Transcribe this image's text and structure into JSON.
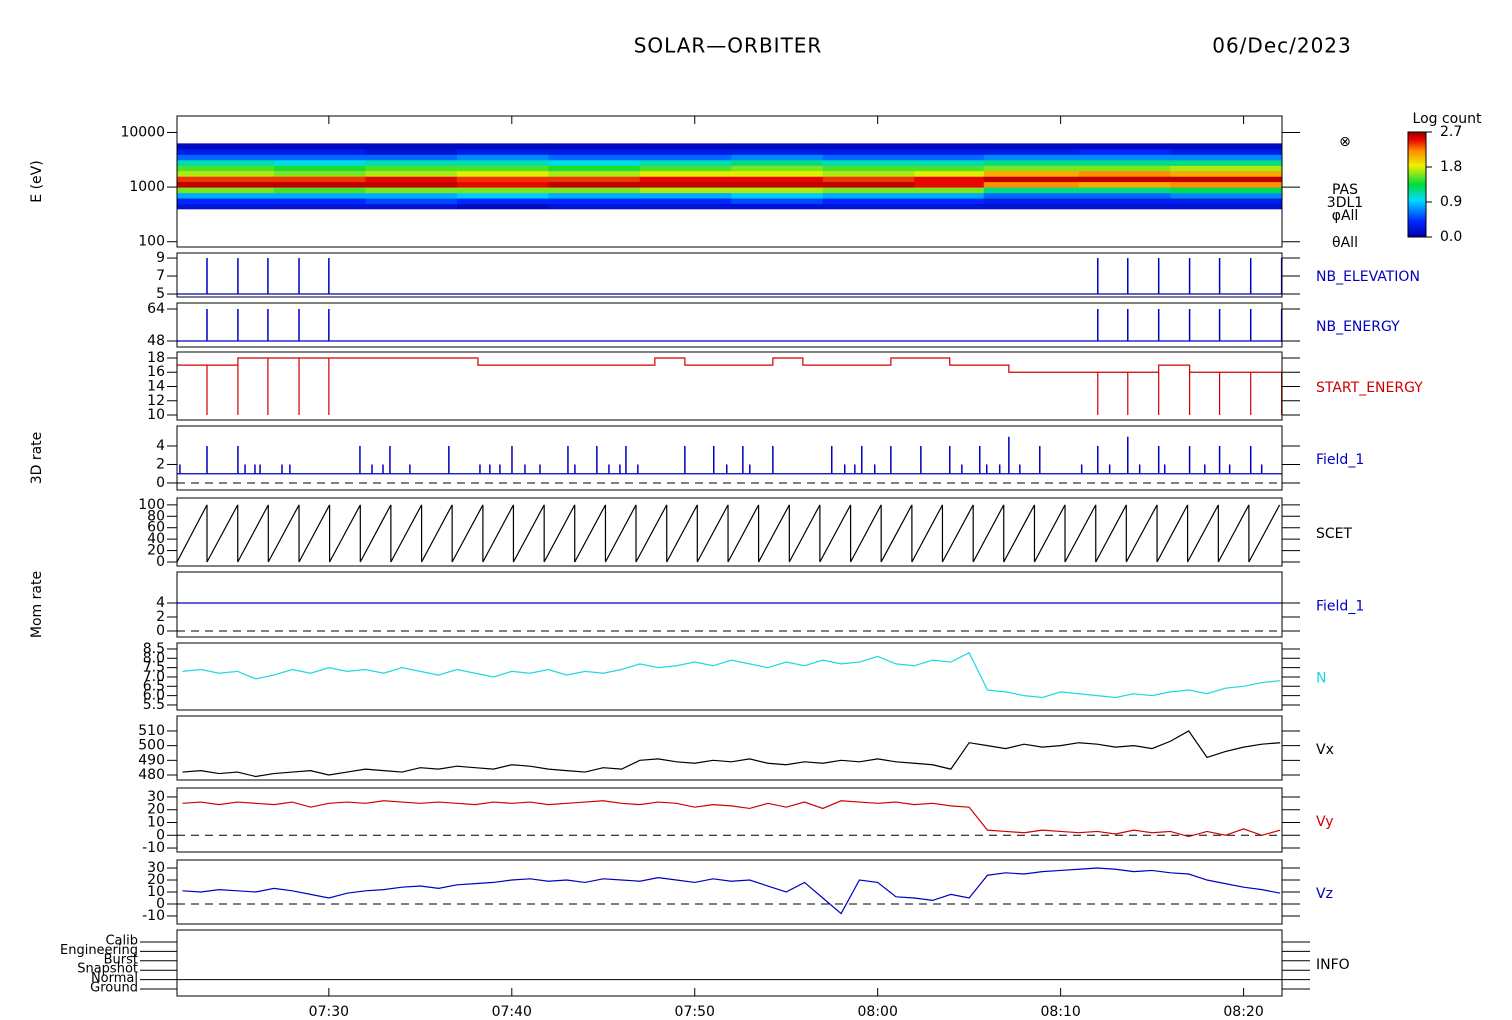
{
  "chart_data": [
    {
      "type": "spectrogram",
      "title": "SOLAR—ORBITER",
      "date": "06/Dec/2023",
      "ylabel": "E (eV)",
      "log_y": true,
      "ylim": [
        80,
        20000
      ],
      "yticks": [
        100,
        1000,
        10000
      ],
      "xlim": [
        21.7,
        82.1
      ],
      "time_edges": [
        21.7,
        27,
        32,
        37,
        42,
        47,
        52,
        57,
        62,
        65.8,
        71,
        76,
        82.1
      ],
      "energy_edges": [
        400,
        500,
        630,
        790,
        1000,
        1260,
        1580,
        2000,
        2510,
        3160,
        3980,
        5010,
        6310
      ],
      "z": [
        [
          0.2,
          0.4,
          0.8,
          1.6,
          2.6,
          2.4,
          1.7,
          1.5,
          1.1,
          0.6,
          0.3,
          0.1
        ],
        [
          0.2,
          0.4,
          0.8,
          1.5,
          2.6,
          2.4,
          1.6,
          1.4,
          1.0,
          0.6,
          0.3,
          0.1
        ],
        [
          0.2,
          0.5,
          0.8,
          1.6,
          2.6,
          2.5,
          1.7,
          1.5,
          1.1,
          0.6,
          0.2,
          0.1
        ],
        [
          0.1,
          0.4,
          0.9,
          1.6,
          2.5,
          2.4,
          1.8,
          1.5,
          1.1,
          0.7,
          0.3,
          0.1
        ],
        [
          0.2,
          0.4,
          0.8,
          1.6,
          2.6,
          2.4,
          1.7,
          1.4,
          1.0,
          0.6,
          0.3,
          0.1
        ],
        [
          0.2,
          0.4,
          0.8,
          1.7,
          2.6,
          2.5,
          1.8,
          1.5,
          1.1,
          0.6,
          0.3,
          0.1
        ],
        [
          0.2,
          0.5,
          0.9,
          1.7,
          2.6,
          2.5,
          1.8,
          1.6,
          1.2,
          0.7,
          0.3,
          0.1
        ],
        [
          0.2,
          0.4,
          0.8,
          1.6,
          2.6,
          2.4,
          1.7,
          1.5,
          1.1,
          0.6,
          0.3,
          0.1
        ],
        [
          0.2,
          0.4,
          0.8,
          1.6,
          2.5,
          2.5,
          1.8,
          1.5,
          1.1,
          0.6,
          0.3,
          0.1
        ],
        [
          0.2,
          0.3,
          0.6,
          1.2,
          2.2,
          2.6,
          2.1,
          1.6,
          1.2,
          0.7,
          0.3,
          0.1
        ],
        [
          0.2,
          0.3,
          0.6,
          1.2,
          2.1,
          2.6,
          2.2,
          1.6,
          1.2,
          0.7,
          0.4,
          0.1
        ],
        [
          0.2,
          0.3,
          0.7,
          1.3,
          2.2,
          2.6,
          2.1,
          1.7,
          1.2,
          0.7,
          0.3,
          0.1
        ]
      ],
      "annotations": [
        "⊗",
        "PAS",
        "3DL1",
        "φAll",
        "θAll"
      ],
      "colorbar": {
        "title": "Log count",
        "clim": [
          0,
          2.7
        ],
        "ticks": [
          2.7,
          1.8,
          0.9,
          {
            "value": 0,
            "label": "0.0"
          }
        ]
      }
    },
    {
      "type": "spikes",
      "label": "NB_ELEVATION",
      "color": "#0000c0",
      "ylim": [
        4.67,
        9.56
      ],
      "yticks": [
        5,
        7,
        9
      ],
      "xlim": [
        21.7,
        82.1
      ],
      "base_value": 5,
      "x": [
        23.34,
        25.03,
        26.67,
        28.37,
        30.0,
        72.03,
        73.67,
        75.36,
        77.05,
        78.69,
        80.39,
        82.08
      ],
      "values": [
        9,
        9,
        9,
        9,
        9,
        9,
        9,
        9,
        9,
        9,
        9,
        9
      ]
    },
    {
      "type": "spikes",
      "label": "NB_ENERGY",
      "color": "#0000c0",
      "ylim": [
        45,
        67
      ],
      "yticks": [
        48,
        64
      ],
      "xlim": [
        21.7,
        82.1
      ],
      "base_value": 48,
      "x": [
        23.34,
        25.03,
        26.67,
        28.37,
        30.0,
        72.03,
        73.67,
        75.36,
        77.05,
        78.69,
        80.39,
        82.08
      ],
      "values": [
        64,
        64,
        64,
        64,
        64,
        64,
        64,
        64,
        64,
        64,
        64,
        64
      ]
    },
    {
      "type": "line",
      "label": "START_ENERGY",
      "color": "#d00000",
      "ylim": [
        9.3,
        18.84
      ],
      "yticks": [
        10,
        12,
        14,
        16,
        18
      ],
      "xlim": [
        21.7,
        82.1
      ],
      "x": [
        21.7,
        23.34,
        23.34,
        23.34,
        25.03,
        25.03,
        25.03,
        26.67,
        26.67,
        26.67,
        28.37,
        28.37,
        28.37,
        30.0,
        30.0,
        30.0,
        38.15,
        38.15,
        47.82,
        47.82,
        49.46,
        49.46,
        54.27,
        54.27,
        55.91,
        55.91,
        60.72,
        60.72,
        63.94,
        63.94,
        67.17,
        67.17,
        72.03,
        72.03,
        72.03,
        73.67,
        73.67,
        73.67,
        75.36,
        75.36,
        75.36,
        77.05,
        77.05,
        77.05,
        78.69,
        78.69,
        78.69,
        80.39,
        80.39,
        80.39,
        82.08,
        82.08
      ],
      "values": [
        17,
        17,
        10,
        17,
        17,
        10,
        18,
        18,
        10,
        18,
        18,
        10,
        18,
        18,
        10,
        18,
        18,
        17,
        17,
        18,
        18,
        17,
        17,
        18,
        18,
        17,
        17,
        18,
        18,
        17,
        17,
        16,
        16,
        10,
        16,
        16,
        10,
        16,
        16,
        10,
        17,
        17,
        10,
        16,
        16,
        10,
        16,
        16,
        10,
        16,
        16,
        10
      ]
    },
    {
      "type": "spikes",
      "label": "Field_1",
      "ylabel": "3D rate",
      "color": "#0000c0",
      "ylim": [
        -0.76,
        6.16
      ],
      "yticks": [
        0,
        2,
        4
      ],
      "xlim": [
        21.7,
        82.1
      ],
      "reference_line": 0,
      "base_value": 1,
      "x": [
        21.86,
        23.34,
        25.03,
        25.42,
        25.96,
        26.24,
        27.44,
        27.87,
        31.7,
        32.36,
        32.96,
        33.34,
        34.43,
        36.56,
        38.26,
        38.8,
        39.35,
        40.01,
        40.72,
        41.54,
        43.07,
        43.45,
        44.65,
        45.31,
        45.91,
        46.24,
        46.89,
        49.46,
        51.04,
        51.75,
        52.63,
        53.01,
        54.27,
        57.49,
        58.2,
        58.75,
        59.13,
        59.84,
        60.72,
        62.36,
        63.94,
        64.6,
        65.58,
        65.96,
        66.67,
        67.17,
        67.77,
        68.86,
        71.15,
        72.03,
        72.68,
        73.67,
        74.32,
        75.36,
        75.69,
        77.05,
        77.88,
        78.69,
        79.24,
        80.39,
        80.99
      ],
      "values": [
        2,
        4,
        4,
        2,
        2,
        2,
        2,
        2,
        4,
        2,
        2,
        4,
        2,
        4,
        2,
        2,
        2,
        4,
        2,
        2,
        4,
        2,
        4,
        2,
        2,
        4,
        2,
        4,
        4,
        2,
        4,
        2,
        4,
        4,
        2,
        2,
        4,
        2,
        4,
        4,
        4,
        2,
        4,
        2,
        2,
        5,
        2,
        4,
        2,
        4,
        2,
        5,
        2,
        4,
        2,
        4,
        2,
        4,
        2,
        4,
        2
      ]
    },
    {
      "type": "line",
      "label": "SCET",
      "color": "#000000",
      "ylim": [
        -7,
        112
      ],
      "yticks": [
        0,
        20,
        40,
        60,
        80,
        100
      ],
      "xlim": [
        21.7,
        82.1
      ],
      "x": [
        21.7,
        23.34,
        23.34,
        25.02,
        25.02,
        26.69,
        26.69,
        28.37,
        28.37,
        30.04,
        30.04,
        31.72,
        31.72,
        33.39,
        33.39,
        35.07,
        35.07,
        36.74,
        36.74,
        38.42,
        38.42,
        40.09,
        40.09,
        41.77,
        41.77,
        43.44,
        43.44,
        45.12,
        45.12,
        46.79,
        46.79,
        48.47,
        48.47,
        50.14,
        50.14,
        51.82,
        51.82,
        53.49,
        53.49,
        55.17,
        55.17,
        56.84,
        56.84,
        58.52,
        58.52,
        60.19,
        60.19,
        61.87,
        61.87,
        63.54,
        63.54,
        65.22,
        65.22,
        66.89,
        66.89,
        68.57,
        68.57,
        70.24,
        70.24,
        71.92,
        71.92,
        73.59,
        73.59,
        75.27,
        75.27,
        76.94,
        76.94,
        78.62,
        78.62,
        80.29,
        80.29,
        81.97
      ],
      "values": [
        0,
        100,
        0,
        100,
        0,
        100,
        0,
        100,
        0,
        100,
        0,
        100,
        0,
        100,
        0,
        100,
        0,
        100,
        0,
        100,
        0,
        100,
        0,
        100,
        0,
        100,
        0,
        100,
        0,
        100,
        0,
        100,
        0,
        100,
        0,
        100,
        0,
        100,
        0,
        100,
        0,
        100,
        0,
        100,
        0,
        100,
        0,
        100,
        0,
        100,
        0,
        100,
        0,
        100,
        0,
        100,
        0,
        100,
        0,
        100,
        0,
        100,
        0,
        100,
        0,
        100,
        0,
        100,
        0,
        100,
        0,
        100
      ]
    },
    {
      "type": "line",
      "label": "Field_1",
      "ylabel": "Mom rate",
      "color": "#0000c0",
      "ylim": [
        -0.86,
        8.43
      ],
      "yticks": [
        0,
        2,
        4
      ],
      "xlim": [
        21.7,
        82.1
      ],
      "reference_line": 0,
      "x": [
        21.7,
        82.1
      ],
      "values": [
        4,
        4
      ]
    },
    {
      "type": "line",
      "label": "N",
      "color": "#20d8e0",
      "ylim": [
        5.23,
        8.82
      ],
      "yticks": [
        5.5,
        {
          "value": 6,
          "label": "6.0"
        },
        6.5,
        {
          "value": 7,
          "label": "7.0"
        },
        7.5,
        {
          "value": 8,
          "label": "8.0"
        },
        8.5
      ],
      "xlim": [
        21.7,
        82.1
      ],
      "x": [
        22,
        23,
        24,
        25,
        26,
        27,
        28,
        29,
        30,
        31,
        32,
        33,
        34,
        35,
        36,
        37,
        38,
        39,
        40,
        41,
        42,
        43,
        44,
        45,
        46,
        47,
        48,
        49,
        50,
        51,
        52,
        53,
        54,
        55,
        56,
        57,
        58,
        59,
        60,
        61,
        62,
        63,
        64,
        65,
        66,
        67,
        68,
        69,
        70,
        71,
        72,
        73,
        74,
        75,
        76,
        77,
        78,
        79,
        80,
        81,
        82
      ],
      "values": [
        7.3,
        7.4,
        7.2,
        7.3,
        6.9,
        7.1,
        7.4,
        7.2,
        7.5,
        7.3,
        7.4,
        7.2,
        7.5,
        7.3,
        7.1,
        7.4,
        7.2,
        7.0,
        7.3,
        7.2,
        7.4,
        7.1,
        7.3,
        7.2,
        7.4,
        7.7,
        7.5,
        7.6,
        7.8,
        7.6,
        7.9,
        7.7,
        7.5,
        7.8,
        7.6,
        7.9,
        7.7,
        7.8,
        8.1,
        7.7,
        7.6,
        7.9,
        7.8,
        8.3,
        6.3,
        6.2,
        6.0,
        5.9,
        6.2,
        6.1,
        6.0,
        5.9,
        6.1,
        6.0,
        6.2,
        6.3,
        6.1,
        6.4,
        6.5,
        6.7,
        6.8
      ]
    },
    {
      "type": "line",
      "label": "Vx",
      "color": "#000000",
      "ylim": [
        476.6,
        520.2
      ],
      "yticks": [
        480,
        490,
        500,
        510
      ],
      "xlim": [
        21.7,
        82.1
      ],
      "x": [
        22,
        23,
        24,
        25,
        26,
        27,
        28,
        29,
        30,
        31,
        32,
        33,
        34,
        35,
        36,
        37,
        38,
        39,
        40,
        41,
        42,
        43,
        44,
        45,
        46,
        47,
        48,
        49,
        50,
        51,
        52,
        53,
        54,
        55,
        56,
        57,
        58,
        59,
        60,
        61,
        62,
        63,
        64,
        65,
        66,
        67,
        68,
        69,
        70,
        71,
        72,
        73,
        74,
        75,
        76,
        77,
        78,
        79,
        80,
        81,
        82
      ],
      "values": [
        482,
        483,
        481,
        482,
        479,
        481,
        482,
        483,
        480,
        482,
        484,
        483,
        482,
        485,
        484,
        486,
        485,
        484,
        487,
        486,
        484,
        483,
        482,
        485,
        484,
        490,
        491,
        489,
        488,
        490,
        489,
        491,
        488,
        487,
        489,
        488,
        490,
        489,
        491,
        489,
        488,
        487,
        484,
        502,
        500,
        498,
        501,
        499,
        500,
        502,
        501,
        499,
        500,
        498,
        503,
        510,
        492,
        496,
        499,
        501,
        502
      ]
    },
    {
      "type": "line",
      "label": "Vy",
      "color": "#d00000",
      "ylim": [
        -13.1,
        37
      ],
      "yticks": [
        -10,
        0,
        10,
        20,
        30
      ],
      "xlim": [
        21.7,
        82.1
      ],
      "reference_line": 0,
      "x": [
        22,
        23,
        24,
        25,
        26,
        27,
        28,
        29,
        30,
        31,
        32,
        33,
        34,
        35,
        36,
        37,
        38,
        39,
        40,
        41,
        42,
        43,
        44,
        45,
        46,
        47,
        48,
        49,
        50,
        51,
        52,
        53,
        54,
        55,
        56,
        57,
        58,
        59,
        60,
        61,
        62,
        63,
        64,
        65,
        66,
        67,
        68,
        69,
        70,
        71,
        72,
        73,
        74,
        75,
        76,
        77,
        78,
        79,
        80,
        81,
        82
      ],
      "values": [
        25,
        26,
        24,
        26,
        25,
        24,
        26,
        22,
        25,
        26,
        25,
        27,
        26,
        25,
        26,
        25,
        24,
        26,
        25,
        26,
        24,
        25,
        26,
        27,
        25,
        24,
        26,
        25,
        22,
        24,
        23,
        21,
        25,
        22,
        26,
        21,
        27,
        26,
        25,
        26,
        24,
        25,
        23,
        22,
        4,
        3,
        2,
        4,
        3,
        2,
        3,
        1,
        4,
        2,
        3,
        -1,
        3,
        0,
        5,
        0,
        4
      ]
    },
    {
      "type": "line",
      "label": "Vz",
      "color": "#0000c0",
      "ylim": [
        -16.7,
        36.7
      ],
      "yticks": [
        -10,
        0,
        10,
        20,
        30
      ],
      "xlim": [
        21.7,
        82.1
      ],
      "reference_line": 0,
      "x": [
        22,
        23,
        24,
        25,
        26,
        27,
        28,
        29,
        30,
        31,
        32,
        33,
        34,
        35,
        36,
        37,
        38,
        39,
        40,
        41,
        42,
        43,
        44,
        45,
        46,
        47,
        48,
        49,
        50,
        51,
        52,
        53,
        54,
        55,
        56,
        57,
        58,
        59,
        60,
        61,
        62,
        63,
        64,
        65,
        66,
        67,
        68,
        69,
        70,
        71,
        72,
        73,
        74,
        75,
        76,
        77,
        78,
        79,
        80,
        81,
        82
      ],
      "values": [
        11,
        10,
        12,
        11,
        10,
        13,
        11,
        8,
        5,
        9,
        11,
        12,
        14,
        15,
        13,
        16,
        17,
        18,
        20,
        21,
        19,
        20,
        18,
        21,
        20,
        19,
        22,
        20,
        18,
        21,
        19,
        20,
        15,
        10,
        18,
        5,
        -8,
        20,
        18,
        6,
        5,
        3,
        8,
        5,
        24,
        26,
        25,
        27,
        28,
        29,
        30,
        29,
        27,
        28,
        26,
        25,
        20,
        17,
        14,
        12,
        9
      ]
    },
    {
      "type": "state",
      "label": "INFO",
      "levels": [
        "Calib",
        "Engineering",
        "Burst",
        "Snapshot",
        "Normal",
        "Ground"
      ],
      "state": "Normal",
      "xlim": [
        21.7,
        82.1
      ],
      "xticks": [
        {
          "value": 30,
          "label": "07:30"
        },
        {
          "value": 40,
          "label": "07:40"
        },
        {
          "value": 50,
          "label": "07:50"
        },
        {
          "value": 60,
          "label": "08:00"
        },
        {
          "value": 70,
          "label": "08:10"
        },
        {
          "value": 80,
          "label": "08:20"
        }
      ]
    }
  ]
}
